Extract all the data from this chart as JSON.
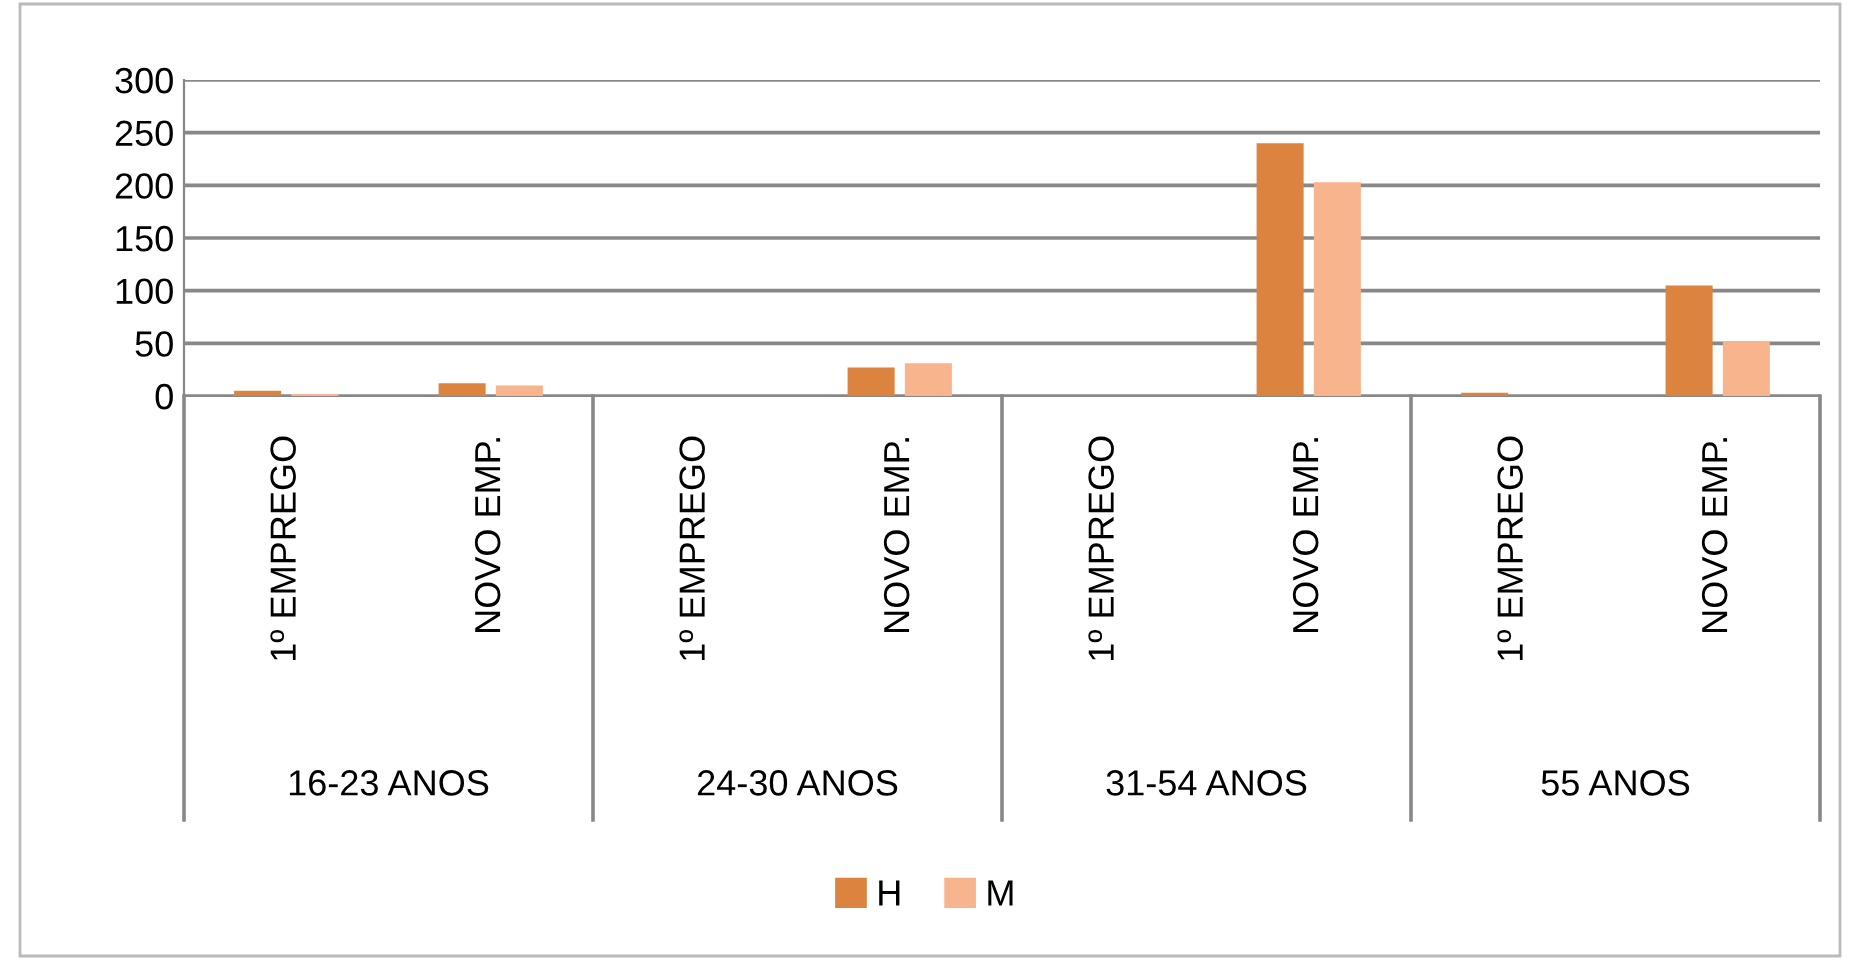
{
  "chart_data": {
    "type": "bar",
    "categories": [
      "1º EMPREGO",
      "NOVO EMP.",
      "1º EMPREGO",
      "NOVO EMP.",
      "1º EMPREGO",
      "NOVO EMP.",
      "1º EMPREGO",
      "NOVO EMP."
    ],
    "annotations": [
      "16-23 ANOS",
      "24-30 ANOS",
      "31-54 ANOS",
      "55 ANOS"
    ],
    "series": [
      {
        "name": "H",
        "color": "#dc843f",
        "values": [
          5,
          12,
          0,
          27,
          0,
          240,
          3,
          105
        ]
      },
      {
        "name": "M",
        "color": "#f8b48d",
        "values": [
          2,
          10,
          0,
          31,
          0,
          203,
          0,
          52
        ]
      }
    ],
    "ylim": [
      0,
      300
    ],
    "yticks": [
      0,
      50,
      100,
      150,
      200,
      250,
      300
    ],
    "grid": "y",
    "legend": "bottom"
  }
}
